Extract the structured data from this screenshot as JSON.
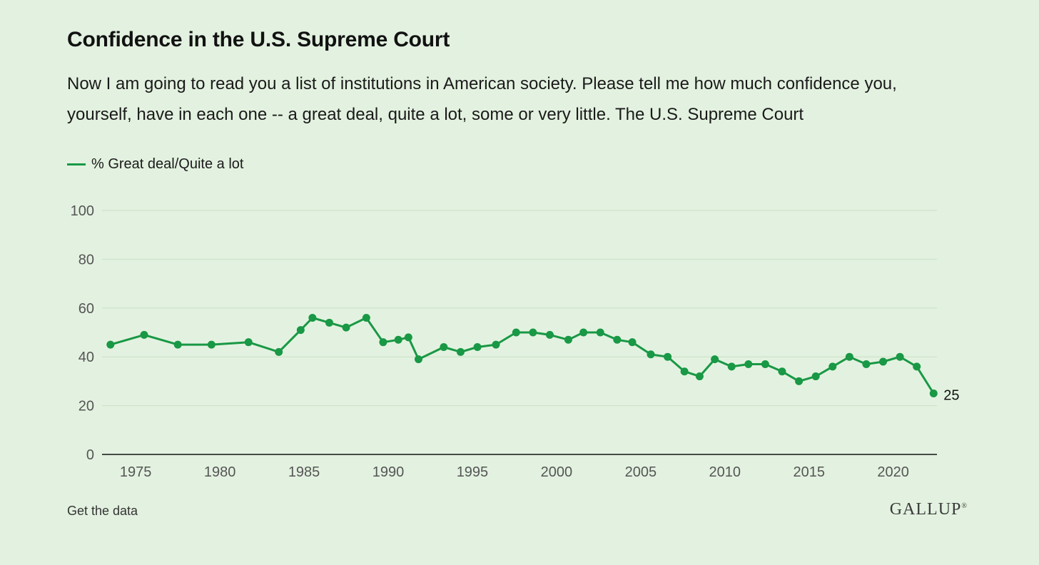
{
  "title": "Confidence in the U.S. Supreme Court",
  "question": "Now I am going to read you a list of institutions in American society. Please tell me how much confidence you, yourself, have in each one -- a great deal, quite a lot, some or very little. The U.S. Supreme Court",
  "footer": {
    "get_data_label": "Get the data",
    "logo_text": "GALLUP",
    "logo_mark": "®"
  },
  "colors": {
    "background": "#e3f2e0",
    "series": "#199845",
    "grid": "#c7dfc3",
    "axis": "#121212"
  },
  "chart_data": {
    "type": "line",
    "title": "Confidence in the U.S. Supreme Court",
    "xlabel": "",
    "ylabel": "",
    "xlim": [
      1973,
      2022.6
    ],
    "ylim": [
      0,
      100
    ],
    "yticks": [
      0,
      20,
      40,
      60,
      80,
      100
    ],
    "xticks": [
      1975,
      1980,
      1985,
      1990,
      1995,
      2000,
      2005,
      2010,
      2015,
      2020
    ],
    "grid": true,
    "legend_position": "top-left",
    "series": [
      {
        "name": "% Great deal/Quite a lot",
        "end_label": "25",
        "points": [
          {
            "x": 1973.5,
            "y": 45
          },
          {
            "x": 1975.5,
            "y": 49
          },
          {
            "x": 1977.5,
            "y": 45
          },
          {
            "x": 1979.5,
            "y": 45
          },
          {
            "x": 1981.7,
            "y": 46
          },
          {
            "x": 1983.5,
            "y": 42
          },
          {
            "x": 1984.8,
            "y": 51
          },
          {
            "x": 1985.5,
            "y": 56
          },
          {
            "x": 1986.5,
            "y": 54
          },
          {
            "x": 1987.5,
            "y": 52
          },
          {
            "x": 1988.7,
            "y": 56
          },
          {
            "x": 1989.7,
            "y": 46
          },
          {
            "x": 1990.6,
            "y": 47
          },
          {
            "x": 1991.2,
            "y": 48
          },
          {
            "x": 1991.8,
            "y": 39
          },
          {
            "x": 1993.3,
            "y": 44
          },
          {
            "x": 1994.3,
            "y": 42
          },
          {
            "x": 1995.3,
            "y": 44
          },
          {
            "x": 1996.4,
            "y": 45
          },
          {
            "x": 1997.6,
            "y": 50
          },
          {
            "x": 1998.6,
            "y": 50
          },
          {
            "x": 1999.6,
            "y": 49
          },
          {
            "x": 2000.7,
            "y": 47
          },
          {
            "x": 2001.6,
            "y": 50
          },
          {
            "x": 2002.6,
            "y": 50
          },
          {
            "x": 2003.6,
            "y": 47
          },
          {
            "x": 2004.5,
            "y": 46
          },
          {
            "x": 2005.6,
            "y": 41
          },
          {
            "x": 2006.6,
            "y": 40
          },
          {
            "x": 2007.6,
            "y": 34
          },
          {
            "x": 2008.5,
            "y": 32
          },
          {
            "x": 2009.4,
            "y": 39
          },
          {
            "x": 2010.4,
            "y": 36
          },
          {
            "x": 2011.4,
            "y": 37
          },
          {
            "x": 2012.4,
            "y": 37
          },
          {
            "x": 2013.4,
            "y": 34
          },
          {
            "x": 2014.4,
            "y": 30
          },
          {
            "x": 2015.4,
            "y": 32
          },
          {
            "x": 2016.4,
            "y": 36
          },
          {
            "x": 2017.4,
            "y": 40
          },
          {
            "x": 2018.4,
            "y": 37
          },
          {
            "x": 2019.4,
            "y": 38
          },
          {
            "x": 2020.4,
            "y": 40
          },
          {
            "x": 2021.4,
            "y": 36
          },
          {
            "x": 2022.4,
            "y": 25
          }
        ]
      }
    ]
  }
}
